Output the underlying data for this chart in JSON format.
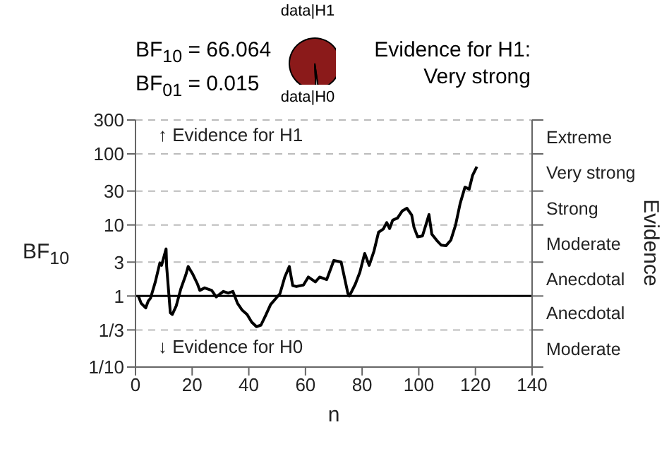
{
  "chart_data": [
    {
      "type": "pie",
      "categories": [
        "data|H1",
        "data|H0"
      ],
      "values": [
        98.5,
        1.5
      ],
      "colors": [
        "#8b1a1a",
        "#ffffff"
      ],
      "legend": false,
      "annotations": [
        "BF$_{10}$ = 66.064",
        "BF$_{01}$ = 0.015",
        "Evidence for H1:",
        "Very strong"
      ]
    },
    {
      "type": "line",
      "xlabel": "n",
      "ylabel": "BF$_{10}$",
      "y2label": "Evidence",
      "x": [
        1,
        2,
        3.6,
        4.5,
        5.3,
        7,
        8.6,
        9.2,
        10.8,
        11,
        12.3,
        13,
        14.4,
        16,
        17.8,
        18.6,
        20.3,
        21.9,
        22.7,
        24.4,
        26.9,
        28.5,
        31,
        32.7,
        34.4,
        36,
        37.7,
        39.4,
        41,
        42.7,
        44.3,
        46,
        47.7,
        49.4,
        51,
        52.7,
        54.3,
        55.5,
        56.8,
        59.3,
        61,
        63.5,
        65,
        67.5,
        70,
        72.6,
        75,
        75.5,
        77.6,
        79.2,
        80.9,
        82.5,
        84.2,
        85.8,
        87.5,
        88.7,
        89.7,
        90.8,
        92.5,
        94.2,
        95.8,
        97.5,
        98.3,
        99.6,
        101.3,
        102.5,
        103.6,
        104.6,
        106.3,
        107.9,
        109.6,
        111.3,
        113,
        114.6,
        116.3,
        117.8,
        119,
        120.5
      ],
      "series": [
        {
          "color": "#000000",
          "values": [
            1,
            0.79,
            0.68,
            0.85,
            0.93,
            1.58,
            2.93,
            2.7,
            4.6,
            2.6,
            0.58,
            0.55,
            0.73,
            1.26,
            2.0,
            2.6,
            2.0,
            1.47,
            1.2,
            1.3,
            1.2,
            0.97,
            1.16,
            1.1,
            1.16,
            0.79,
            0.63,
            0.55,
            0.43,
            0.37,
            0.39,
            0.54,
            0.76,
            0.91,
            1.08,
            1.85,
            2.6,
            1.4,
            1.36,
            1.43,
            1.85,
            1.58,
            1.85,
            1.7,
            3.16,
            3.0,
            1.08,
            1.0,
            1.47,
            2.16,
            3.98,
            2.7,
            4.3,
            7.9,
            8.8,
            10.8,
            8.9,
            11.7,
            12.5,
            15.8,
            17.2,
            13.8,
            9.3,
            6.8,
            7.0,
            10,
            14,
            7.4,
            6.1,
            5.2,
            5.1,
            6.1,
            10,
            20,
            34,
            32,
            50,
            66
          ]
        }
      ],
      "xlim": [
        0,
        140
      ],
      "xticks": [
        0,
        20,
        40,
        60,
        80,
        100,
        120,
        140
      ],
      "log": true,
      "ylim": [
        0.1,
        300
      ],
      "yticks": [
        {
          "value": 0.1,
          "label": "1/10"
        },
        {
          "value": 0.333,
          "label": "1/3"
        },
        1,
        3,
        10,
        30,
        100,
        300
      ],
      "grid": "y",
      "legend": false,
      "marker": "none",
      "line_style": "solid",
      "ref_lines": [
        {
          "axis": "y",
          "value": 1,
          "color": "#000000"
        }
      ],
      "annotations": [
        "↑ Evidence for H1",
        "↓ Evidence for H0",
        "Extreme",
        "Very strong",
        "Strong",
        "Moderate",
        "Anecdotal",
        "Anecdotal",
        "Moderate"
      ]
    }
  ]
}
